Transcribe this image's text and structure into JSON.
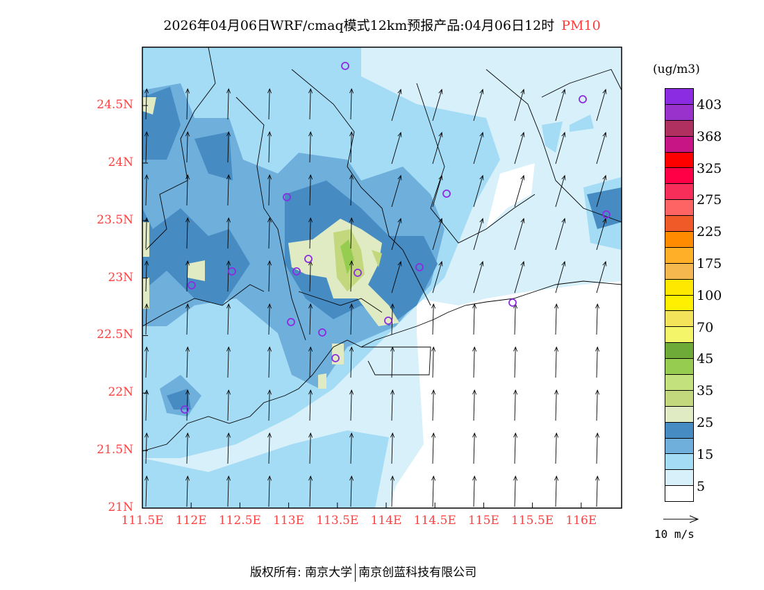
{
  "title": {
    "main": "2026年04月06日WRF/cmaq模式12km预报产品:04月06日12时",
    "pollutant": "PM10"
  },
  "map": {
    "lat_labels": [
      "24.5N",
      "24N",
      "23.5N",
      "23N",
      "22.5N",
      "22N",
      "21.5N",
      "21N"
    ],
    "lat_values": [
      24.5,
      24,
      23.5,
      23,
      22.5,
      22,
      21.5,
      21
    ],
    "lon_labels": [
      "111.5E",
      "112E",
      "112.5E",
      "113E",
      "113.5E",
      "114E",
      "114.5E",
      "115E",
      "115.5E",
      "116E"
    ],
    "lon_values": [
      111.5,
      112,
      112.5,
      113,
      113.5,
      114,
      114.5,
      115,
      115.5,
      116
    ]
  },
  "legend": {
    "unit": "(ug/m3)",
    "colors": [
      "#8B2BE2",
      "#9932CC",
      "#B03060",
      "#C71585",
      "#FF0000",
      "#FF0046",
      "#F72D5A",
      "#FF6464",
      "#F05A28",
      "#FF8C00",
      "#FFB028",
      "#F5B84E",
      "#FFE800",
      "#FFF000",
      "#F2E35A",
      "#F5F56A",
      "#6EAA37",
      "#96CD50",
      "#C3E17D",
      "#C3D87D",
      "#E1EBC3",
      "#468CC3",
      "#6EAFDC",
      "#A5DCF5",
      "#D7F0FA",
      "#FFFFFF"
    ],
    "labels": [
      "403",
      "368",
      "325",
      "275",
      "225",
      "175",
      "100",
      "70",
      "45",
      "35",
      "25",
      "15",
      "5"
    ],
    "vector_label": "10 m/s"
  },
  "footer": {
    "left": "版权所有: 南京大学",
    "right": "南京创蓝科技有限公司"
  }
}
